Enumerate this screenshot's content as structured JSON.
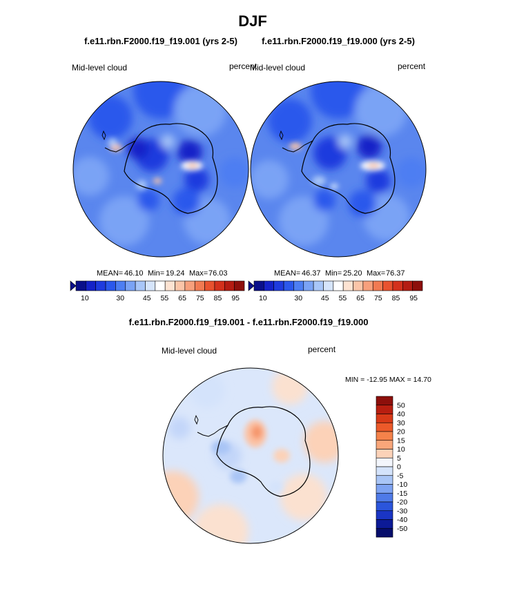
{
  "chart_data": [
    {
      "type": "heatmap",
      "title": "DJF",
      "subtitle": "f.e11.rbn.F2000.f19_f19.001 (yrs 2-5)",
      "variable": "Mid-level cloud",
      "units": "percent",
      "stats": {
        "mean": "46.10",
        "min": "19.24",
        "max": "76.03"
      },
      "colorbar": {
        "levels": [
          10,
          15,
          20,
          25,
          30,
          35,
          40,
          45,
          50,
          55,
          60,
          65,
          70,
          75,
          80,
          85,
          90,
          95
        ],
        "tick_labels": [
          "10",
          "30",
          "45",
          "55",
          "65",
          "75",
          "85",
          "95"
        ]
      }
    },
    {
      "type": "heatmap",
      "subtitle": "f.e11.rbn.F2000.f19_f19.000 (yrs 2-5)",
      "variable": "Mid-level cloud",
      "units": "percent",
      "stats": {
        "mean": "46.37",
        "min": "25.20",
        "max": "76.37"
      },
      "colorbar": {
        "levels": [
          10,
          15,
          20,
          25,
          30,
          35,
          40,
          45,
          50,
          55,
          60,
          65,
          70,
          75,
          80,
          85,
          90,
          95
        ],
        "tick_labels": [
          "10",
          "30",
          "45",
          "55",
          "65",
          "75",
          "85",
          "95"
        ]
      }
    },
    {
      "type": "heatmap",
      "subtitle": "f.e11.rbn.F2000.f19_f19.001 - f.e11.rbn.F2000.f19_f19.000",
      "variable": "Mid-level cloud",
      "units": "percent",
      "stats_text": "MIN = -12.95 MAX =  14.70",
      "colorbar": {
        "levels": [
          50,
          40,
          30,
          20,
          15,
          10,
          5,
          0,
          -5,
          -10,
          -15,
          -20,
          -30,
          -40,
          -50
        ],
        "tick_labels": [
          "50",
          "40",
          "30",
          "20",
          "15",
          "10",
          "5",
          "0",
          "-5",
          "-10",
          "-15",
          "-20",
          "-30",
          "-40",
          "-50"
        ]
      }
    }
  ],
  "labels": {
    "mean": "MEAN=",
    "min": "Min=",
    "max": "Max="
  },
  "palette": {
    "seq": [
      "#0a0f8a",
      "#1522c8",
      "#1f3bde",
      "#2b58ec",
      "#4d7ef2",
      "#7aa3f5",
      "#a8c6f8",
      "#d6e5fb",
      "#ffffff",
      "#fde3d2",
      "#fbc5a8",
      "#f7a07c",
      "#f17a52",
      "#e8522f",
      "#d3311c",
      "#b41c12",
      "#8d0f0b"
    ],
    "diff": [
      "#8d0f0b",
      "#b81e10",
      "#d83a18",
      "#ec5a2a",
      "#f5824a",
      "#f9a67a",
      "#fcd2b8",
      "#f3f6fc",
      "#d4e3fb",
      "#a9c5f6",
      "#7ea3f2",
      "#4f7ae8",
      "#2b55dc",
      "#1a35c4",
      "#0c1a96",
      "#060d6b"
    ],
    "landline": "#000000"
  }
}
